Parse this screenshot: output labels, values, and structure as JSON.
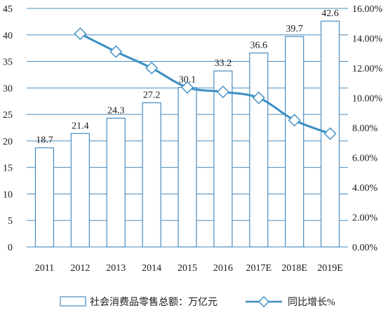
{
  "chart_data": {
    "type": "bar",
    "categories": [
      "2011",
      "2012",
      "2013",
      "2014",
      "2015",
      "2016",
      "2017E",
      "2018E",
      "2019E"
    ],
    "series": [
      {
        "name": "社会消费品零售总额：万亿元",
        "type": "bar",
        "axis": "left",
        "values": [
          18.7,
          21.4,
          24.3,
          27.2,
          30.1,
          33.2,
          36.6,
          39.7,
          42.6
        ],
        "labels": [
          "18.7",
          "21.4",
          "24.3",
          "27.2",
          "30.1",
          "33.2",
          "36.6",
          "39.7",
          "42.6"
        ]
      },
      {
        "name": "同比增长%",
        "type": "line",
        "axis": "right",
        "values": [
          null,
          14.3,
          13.1,
          12.0,
          10.7,
          10.4,
          10.0,
          8.5,
          7.6
        ]
      }
    ],
    "y_left": {
      "min": 0,
      "max": 45,
      "ticks": [
        "0",
        "5",
        "10",
        "15",
        "20",
        "25",
        "30",
        "35",
        "40",
        "45"
      ]
    },
    "y_right": {
      "min": 0,
      "max": 16,
      "ticks": [
        "0.00%",
        "2.00%",
        "4.00%",
        "6.00%",
        "8.00%",
        "10.00%",
        "12.00%",
        "14.00%",
        "16.00%"
      ]
    },
    "grid": true,
    "legend_position": "bottom",
    "colors": {
      "bar_stroke": "#4a8bbf",
      "bar_fill": "#ffffff",
      "line": "#3b8ec4",
      "grid": "#4a8bbf"
    }
  }
}
